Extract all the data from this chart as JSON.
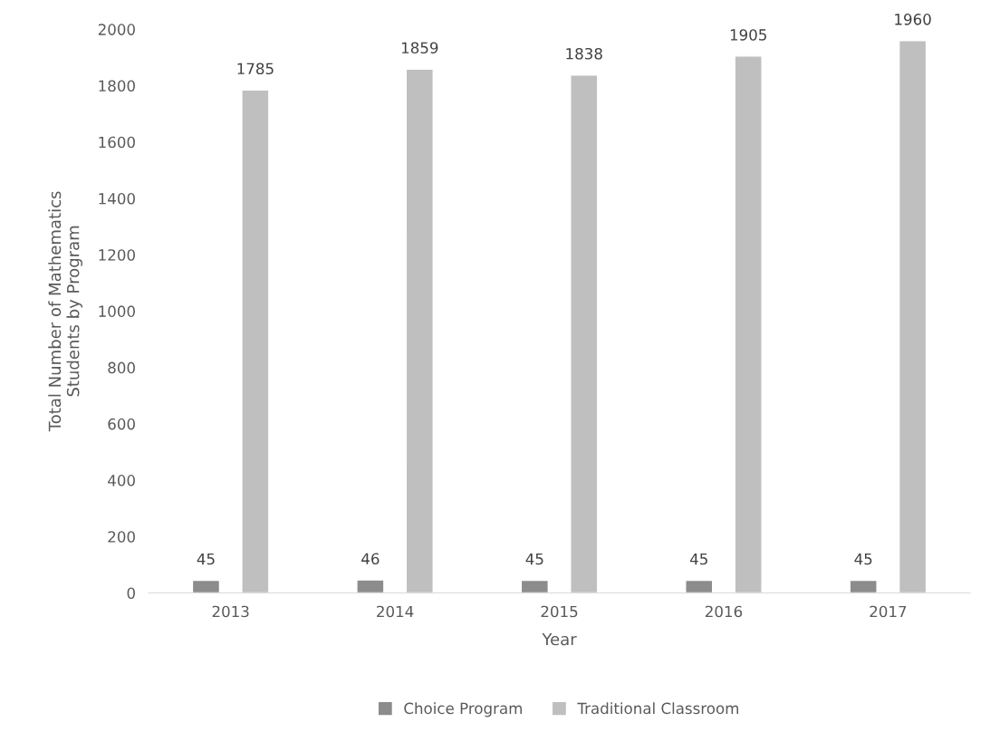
{
  "chart_data": {
    "type": "bar",
    "xlabel": "Year",
    "ylabel": "Total Number of Mathematics\nStudents by Program",
    "categories": [
      "2013",
      "2014",
      "2015",
      "2016",
      "2017"
    ],
    "series": [
      {
        "name": "Choice Program",
        "color": "#8c8c8c",
        "values": [
          45,
          46,
          45,
          45,
          45
        ]
      },
      {
        "name": "Traditional Classroom",
        "color": "#bfbfbf",
        "values": [
          1785,
          1859,
          1838,
          1905,
          1960
        ]
      }
    ],
    "ylim": [
      0,
      2000
    ],
    "yticks": [
      0,
      200,
      400,
      600,
      800,
      1000,
      1200,
      1400,
      1600,
      1800,
      2000
    ],
    "data_labels": true,
    "grid": false,
    "legend": "bottom"
  }
}
